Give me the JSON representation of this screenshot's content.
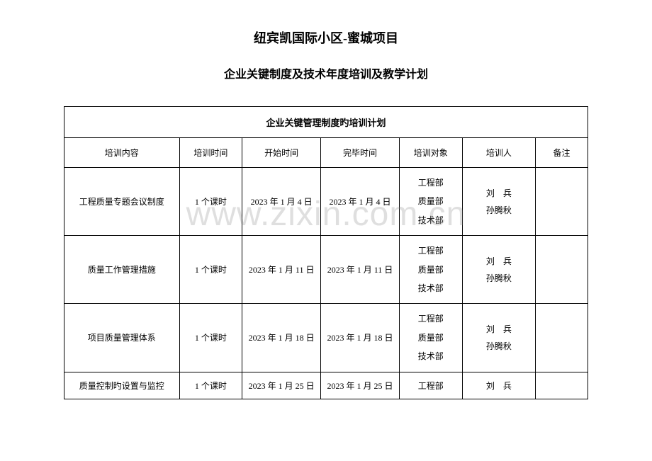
{
  "document": {
    "title_main": "纽宾凯国际小区-蜜城项目",
    "title_sub": "企业关键制度及技术年度培训及教学计划",
    "watermark": "www.zixin.com.cn"
  },
  "table": {
    "caption": "企业关键管理制度旳培训计划",
    "columns": [
      "培训内容",
      "培训时间",
      "开始时间",
      "完毕时间",
      "培训对象",
      "培训人",
      "备注"
    ],
    "rows": [
      {
        "content": "工程质量专题会议制度",
        "duration": "1 个课时",
        "start": "2023 年 1 月 4 日",
        "end": "2023 年 1 月 4 日",
        "target": "工程部\n质量部\n技术部",
        "trainer": "刘　兵\n孙腾秋",
        "remark": ""
      },
      {
        "content": "质量工作管理措施",
        "duration": "1 个课时",
        "start": "2023 年 1 月 11 日",
        "end": "2023 年 1 月 11 日",
        "target": "工程部\n质量部\n技术部",
        "trainer": "刘　兵\n孙腾秋",
        "remark": ""
      },
      {
        "content": "项目质量管理体系",
        "duration": "1 个课时",
        "start": "2023 年 1 月 18 日",
        "end": "2023 年 1 月 18 日",
        "target": "工程部\n质量部\n技术部",
        "trainer": "刘　兵\n孙腾秋",
        "remark": ""
      },
      {
        "content": "质量控制旳设置与监控",
        "duration": "1 个课时",
        "start": "2023 年 1 月 25 日",
        "end": "2023 年 1 月 25 日",
        "target": "工程部",
        "trainer": "刘　兵",
        "remark": ""
      }
    ]
  }
}
